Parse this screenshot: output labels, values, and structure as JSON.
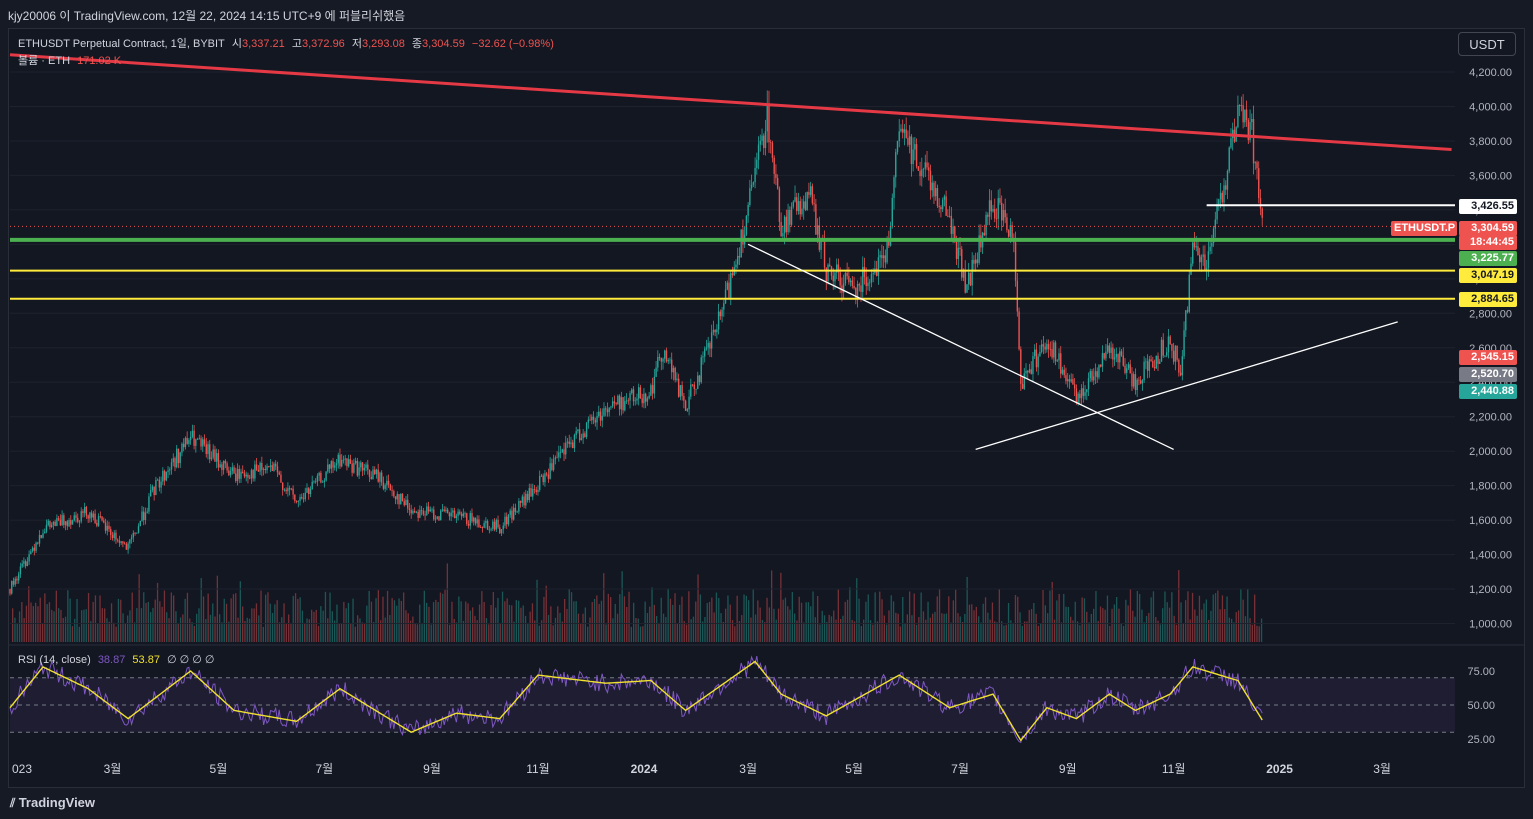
{
  "header": {
    "title": "kjy20006 이 TradingView.com, 12월 22, 2024 14:15 UTC+9 에 퍼블리쉬했음"
  },
  "legend": {
    "symbol": "ETHUSDT Perpetual Contract, 1일, BYBIT",
    "open_label": "시",
    "open": "3,337.21",
    "high_label": "고",
    "high": "3,372.96",
    "low_label": "저",
    "low": "3,293.08",
    "close_label": "종",
    "close": "3,304.59",
    "change": "−32.62 (−0.98%)",
    "volume_label": "볼륨 · ETH",
    "volume": "171.02 K",
    "rsi_label": "RSI (14, close)",
    "rsi_value": "38.87",
    "rsi_ma": "53.87",
    "rsi_extra": "∅ ∅ ∅ ∅"
  },
  "currency_button": "USDT",
  "footer": {
    "brand": "TradingView"
  },
  "colors": {
    "up": "#26a69a",
    "down": "#ef5350",
    "trend_red": "#e53945",
    "support_green": "#4caf50",
    "yellow": "#ffeb3b",
    "white": "#ffffff",
    "rsi": "#7e57c2",
    "rsi_ma": "#f0e130"
  },
  "chart_data": {
    "type": "candlestick",
    "symbol": "ETHUSDT.P",
    "y_axis_ticks": [
      "4,200.00",
      "4,000.00",
      "3,800.00",
      "3,600.00",
      "3,400.00",
      "3,200.00",
      "3,000.00",
      "2,800.00",
      "2,600.00",
      "2,400.00",
      "2,200.00",
      "2,000.00",
      "1,800.00",
      "1,600.00",
      "1,400.00",
      "1,200.00",
      "1,000.00"
    ],
    "y_tick_values": [
      4200,
      4000,
      3800,
      3600,
      3400,
      3200,
      3000,
      2800,
      2600,
      2400,
      2200,
      2000,
      1800,
      1600,
      1400,
      1200,
      1000
    ],
    "x_axis_labels": [
      "2023",
      "3월",
      "5월",
      "7월",
      "9월",
      "11월",
      "2024",
      "3월",
      "5월",
      "7월",
      "9월",
      "11월",
      "2025",
      "3월"
    ],
    "x_dates": [
      "2023-01-01",
      "2023-03-01",
      "2023-05-01",
      "2023-07-01",
      "2023-09-01",
      "2023-11-01",
      "2024-01-01",
      "2024-03-01",
      "2024-05-01",
      "2024-07-01",
      "2024-09-01",
      "2024-11-01",
      "2025-01-01",
      "2025-03-01"
    ],
    "x_axis_shown": [
      "023",
      "3월",
      "5월",
      "7월",
      "9월",
      "11월",
      "2024",
      "3월",
      "5월",
      "7월",
      "9월",
      "11월",
      "2025",
      "3월"
    ],
    "price_path": [
      [
        "2023-01-01",
        1200
      ],
      [
        "2023-01-20",
        1550
      ],
      [
        "2023-02-15",
        1650
      ],
      [
        "2023-03-10",
        1430
      ],
      [
        "2023-03-25",
        1780
      ],
      [
        "2023-04-15",
        2080
      ],
      [
        "2023-05-10",
        1860
      ],
      [
        "2023-06-01",
        1900
      ],
      [
        "2023-06-15",
        1700
      ],
      [
        "2023-07-10",
        1950
      ],
      [
        "2023-08-01",
        1850
      ],
      [
        "2023-08-20",
        1660
      ],
      [
        "2023-09-15",
        1620
      ],
      [
        "2023-10-10",
        1560
      ],
      [
        "2023-11-01",
        1800
      ],
      [
        "2023-11-20",
        2050
      ],
      [
        "2023-12-10",
        2250
      ],
      [
        "2024-01-05",
        2350
      ],
      [
        "2024-01-12",
        2600
      ],
      [
        "2024-01-25",
        2250
      ],
      [
        "2024-02-15",
        2800
      ],
      [
        "2024-03-01",
        3400
      ],
      [
        "2024-03-12",
        3950
      ],
      [
        "2024-03-20",
        3300
      ],
      [
        "2024-04-05",
        3500
      ],
      [
        "2024-04-15",
        3050
      ],
      [
        "2024-05-01",
        2950
      ],
      [
        "2024-05-20",
        3150
      ],
      [
        "2024-05-27",
        3850
      ],
      [
        "2024-06-10",
        3650
      ],
      [
        "2024-06-25",
        3350
      ],
      [
        "2024-07-05",
        2950
      ],
      [
        "2024-07-20",
        3450
      ],
      [
        "2024-08-01",
        3250
      ],
      [
        "2024-08-05",
        2400
      ],
      [
        "2024-08-20",
        2650
      ],
      [
        "2024-09-06",
        2300
      ],
      [
        "2024-09-25",
        2600
      ],
      [
        "2024-10-10",
        2400
      ],
      [
        "2024-10-30",
        2650
      ],
      [
        "2024-11-05",
        2450
      ],
      [
        "2024-11-12",
        3200
      ],
      [
        "2024-11-20",
        3100
      ],
      [
        "2024-12-01",
        3600
      ],
      [
        "2024-12-08",
        3950
      ],
      [
        "2024-12-16",
        3850
      ],
      [
        "2024-12-22",
        3304.59
      ]
    ],
    "horizontal_levels": [
      {
        "price": 3426.55,
        "label": "3,426.55",
        "color": "#ffffff"
      },
      {
        "price": 3225.77,
        "label": "3,225.77",
        "color": "#4caf50"
      },
      {
        "price": 3047.19,
        "label": "3,047.19",
        "color": "#ffeb3b"
      },
      {
        "price": 2884.65,
        "label": "2,884.65",
        "color": "#ffeb3b"
      }
    ],
    "price_labels": [
      {
        "text": "ETHUSDT.P",
        "price": 3304.59,
        "bg": "#ef5350"
      },
      {
        "text": "3,304.59",
        "price": 3304.59,
        "bg": "#ef5350"
      },
      {
        "text": "18:44:45",
        "price": 3304.59,
        "bg": "#ef5350"
      },
      {
        "text": "3,225.77",
        "price": 3225.77,
        "bg": "#4caf50"
      },
      {
        "text": "3,047.19",
        "price": 3047.19,
        "bg": "#ffeb3b"
      },
      {
        "text": "2,884.65",
        "price": 2884.65,
        "bg": "#ffeb3b"
      },
      {
        "text": "3,426.55",
        "price": 3426.55,
        "bg": "#ffffff"
      },
      {
        "text": "2,545.15",
        "price": 2545.15,
        "bg": "#ef5350"
      },
      {
        "text": "2,520.70",
        "price": 2520.7,
        "bg": "#787b86"
      },
      {
        "text": "2,440.88",
        "price": 2440.88,
        "bg": "#26a69a"
      }
    ],
    "trendlines": [
      {
        "name": "descending-resistance",
        "from": [
          "2023-01-01",
          4300
        ],
        "to": [
          "2025-04-10",
          3750
        ],
        "color": "#e53945"
      },
      {
        "name": "white-descending",
        "from": [
          "2024-03-01",
          3200
        ],
        "to": [
          "2024-11-01",
          2010
        ],
        "color": "#ffffff"
      },
      {
        "name": "white-ascending",
        "from": [
          "2024-07-10",
          2010
        ],
        "to": [
          "2025-03-10",
          2750
        ],
        "color": "#ffffff"
      }
    ],
    "rsi": {
      "ticks": [
        "75.00",
        "50.00",
        "25.00"
      ],
      "tick_values": [
        75,
        50,
        25
      ],
      "upper": 70,
      "lower": 30,
      "path": [
        [
          "2023-01-01",
          48
        ],
        [
          "2023-01-20",
          78
        ],
        [
          "2023-02-15",
          62
        ],
        [
          "2023-03-10",
          40
        ],
        [
          "2023-04-15",
          75
        ],
        [
          "2023-05-10",
          46
        ],
        [
          "2023-06-15",
          38
        ],
        [
          "2023-07-10",
          62
        ],
        [
          "2023-08-20",
          30
        ],
        [
          "2023-09-15",
          44
        ],
        [
          "2023-10-10",
          40
        ],
        [
          "2023-11-01",
          72
        ],
        [
          "2023-12-10",
          66
        ],
        [
          "2024-01-05",
          68
        ],
        [
          "2024-01-25",
          46
        ],
        [
          "2024-03-05",
          82
        ],
        [
          "2024-03-20",
          58
        ],
        [
          "2024-04-15",
          42
        ],
        [
          "2024-05-27",
          72
        ],
        [
          "2024-06-25",
          48
        ],
        [
          "2024-07-20",
          58
        ],
        [
          "2024-08-05",
          24
        ],
        [
          "2024-08-20",
          48
        ],
        [
          "2024-09-06",
          40
        ],
        [
          "2024-09-25",
          58
        ],
        [
          "2024-10-10",
          46
        ],
        [
          "2024-10-30",
          58
        ],
        [
          "2024-11-12",
          78
        ],
        [
          "2024-12-08",
          68
        ],
        [
          "2024-12-22",
          39
        ]
      ]
    }
  }
}
